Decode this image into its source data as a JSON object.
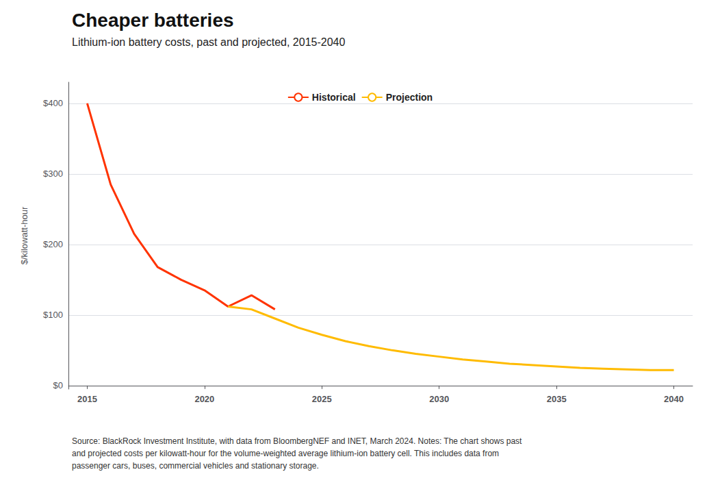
{
  "chart_data": {
    "type": "line",
    "title": "Cheaper batteries",
    "subtitle": "Lithium-ion battery costs, past and projected, 2015-2040",
    "y_label": "$/kilowatt-hour",
    "footnote": [
      "Source: BlackRock Investment Institute, with data from BloombergNEF and INET, March 2024. Notes: The chart shows past",
      "and projected costs per kilowatt-hour for the volume-weighted average lithium-ion battery cell. This includes data from",
      "passenger cars, buses, commercial vehicles and stationary storage."
    ],
    "series": [
      {
        "name": "Historical",
        "color": "#FF3300",
        "x": [
          2015,
          2016,
          2017,
          2018,
          2019,
          2020,
          2021,
          2022,
          2023
        ],
        "values": [
          400,
          285,
          215,
          168,
          150,
          135,
          112,
          128,
          108
        ]
      },
      {
        "name": "Projection",
        "color": "#FFBB00",
        "x": [
          2021,
          2022,
          2023,
          2024,
          2025,
          2026,
          2027,
          2028,
          2029,
          2030,
          2031,
          2032,
          2033,
          2034,
          2035,
          2036,
          2037,
          2038,
          2039,
          2040
        ],
        "values": [
          112,
          108,
          95,
          82,
          72,
          63,
          56,
          50,
          45,
          41,
          37,
          34,
          31,
          29,
          27,
          25,
          24,
          23,
          22,
          22
        ]
      }
    ],
    "xlim": [
      2014.2,
      2040.8
    ],
    "xticks": [
      2015,
      2020,
      2025,
      2030,
      2035,
      2040
    ],
    "ylim": [
      -5,
      430
    ],
    "yticks": [
      {
        "value": 0,
        "label": "$0"
      },
      {
        "value": 100,
        "label": "$100"
      },
      {
        "value": 200,
        "label": "$200"
      },
      {
        "value": 300,
        "label": "$300"
      },
      {
        "value": 400,
        "label": "$400"
      }
    ],
    "grid": true,
    "legend": "top"
  }
}
